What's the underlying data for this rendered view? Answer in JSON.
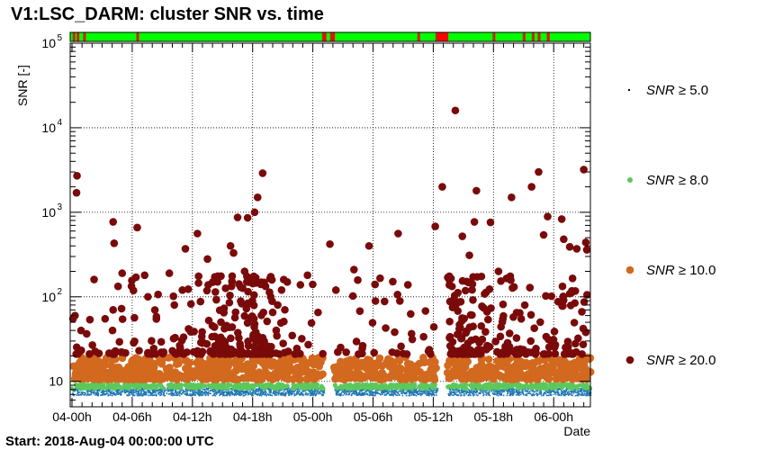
{
  "chart_data": {
    "type": "scatter",
    "title": "V1:LSC_DARM: cluster SNR vs. time",
    "ylabel": "SNR [-]",
    "xlabel": "Date",
    "footer": "Start: 2018-Aug-04 00:00:00 UTC",
    "yscale": "log",
    "ylim": [
      5,
      100000
    ],
    "xlim_hours": [
      0,
      43
    ],
    "grid": true,
    "legend_position": "right",
    "x_ticks": [
      {
        "hours": 0,
        "label": "04-00h"
      },
      {
        "hours": 6,
        "label": "04-06h"
      },
      {
        "hours": 12,
        "label": "04-12h"
      },
      {
        "hours": 18,
        "label": "04-18h"
      },
      {
        "hours": 24,
        "label": "05-00h"
      },
      {
        "hours": 30,
        "label": "05-06h"
      },
      {
        "hours": 36,
        "label": "05-12h"
      },
      {
        "hours": 42,
        "label": "05-18h"
      },
      {
        "hours": 48,
        "label": "06-00h"
      }
    ],
    "y_ticks": [
      {
        "value": 10,
        "mantissa": "10",
        "exponent": ""
      },
      {
        "value": 100,
        "mantissa": "10",
        "exponent": "2"
      },
      {
        "value": 1000,
        "mantissa": "10",
        "exponent": "3"
      },
      {
        "value": 10000,
        "mantissa": "10",
        "exponent": "4"
      },
      {
        "value": 100000,
        "mantissa": "10",
        "exponent": "5"
      }
    ],
    "series": [
      {
        "name": "SNR ≥ 5.0",
        "label_var": "SNR",
        "label_op": "≥ 5.0",
        "color": "#1f77b4",
        "range": [
          5,
          8
        ]
      },
      {
        "name": "SNR ≥ 8.0",
        "label_var": "SNR",
        "label_op": "≥ 8.0",
        "color": "#5cc85c",
        "range": [
          8,
          10
        ]
      },
      {
        "name": "SNR ≥ 10.0",
        "label_var": "SNR",
        "label_op": "≥ 10.0",
        "color": "#d2691e",
        "range": [
          10,
          20
        ]
      },
      {
        "name": "SNR ≥ 20.0",
        "label_var": "SNR",
        "label_op": "≥ 20.0",
        "color": "#7a0a0a",
        "range": [
          20,
          20000
        ]
      }
    ],
    "high_points": [
      {
        "t": 0.5,
        "snr": 2700
      },
      {
        "t": 0.45,
        "snr": 1700
      },
      {
        "t": 0.1,
        "snr": 55
      },
      {
        "t": 0.3,
        "snr": 60
      },
      {
        "t": 0.9,
        "snr": 40
      },
      {
        "t": 3.3,
        "snr": 55
      },
      {
        "t": 4.1,
        "snr": 770
      },
      {
        "t": 4.2,
        "snr": 430
      },
      {
        "t": 4.1,
        "snr": 70
      },
      {
        "t": 5.0,
        "snr": 190
      },
      {
        "t": 6.5,
        "snr": 660
      },
      {
        "t": 9.7,
        "snr": 190
      },
      {
        "t": 10.2,
        "snr": 80
      },
      {
        "t": 11.3,
        "snr": 370
      },
      {
        "t": 11.0,
        "snr": 120
      },
      {
        "t": 12.5,
        "snr": 560
      },
      {
        "t": 13.5,
        "snr": 280
      },
      {
        "t": 14.5,
        "snr": 150
      },
      {
        "t": 15.8,
        "snr": 400
      },
      {
        "t": 16.1,
        "snr": 330
      },
      {
        "t": 16.5,
        "snr": 870
      },
      {
        "t": 17.5,
        "snr": 860
      },
      {
        "t": 17.2,
        "snr": 200
      },
      {
        "t": 18.2,
        "snr": 1000
      },
      {
        "t": 18.5,
        "snr": 1500
      },
      {
        "t": 19.0,
        "snr": 2900
      },
      {
        "t": 19.8,
        "snr": 100
      },
      {
        "t": 20.5,
        "snr": 80
      },
      {
        "t": 21.1,
        "snr": 160
      },
      {
        "t": 25.7,
        "snr": 420
      },
      {
        "t": 26.3,
        "snr": 120
      },
      {
        "t": 28.1,
        "snr": 210
      },
      {
        "t": 29.6,
        "snr": 400
      },
      {
        "t": 30.2,
        "snr": 140
      },
      {
        "t": 32.5,
        "snr": 560
      },
      {
        "t": 36.2,
        "snr": 680
      },
      {
        "t": 36.9,
        "snr": 2000
      },
      {
        "t": 37.6,
        "snr": 175
      },
      {
        "t": 38.2,
        "snr": 16000
      },
      {
        "t": 38.9,
        "snr": 520
      },
      {
        "t": 39.6,
        "snr": 310
      },
      {
        "t": 40.1,
        "snr": 770
      },
      {
        "t": 40.3,
        "snr": 1800
      },
      {
        "t": 41.7,
        "snr": 760
      },
      {
        "t": 42.5,
        "snr": 200
      },
      {
        "t": 43.8,
        "snr": 1500
      },
      {
        "t": 45.8,
        "snr": 2000
      },
      {
        "t": 46.5,
        "snr": 3000
      },
      {
        "t": 47.4,
        "snr": 890
      },
      {
        "t": 47.0,
        "snr": 540
      },
      {
        "t": 48.8,
        "snr": 830
      },
      {
        "t": 49.0,
        "snr": 480
      },
      {
        "t": 49.6,
        "snr": 390
      },
      {
        "t": 50.3,
        "snr": 370
      },
      {
        "t": 51.0,
        "snr": 3200
      },
      {
        "t": 51.2,
        "snr": 440
      },
      {
        "t": 51.3,
        "snr": 360
      }
    ],
    "state_bar": {
      "colors": {
        "ok": "#00ff00",
        "bad": "#ff0000",
        "gap": "#7a4a00"
      },
      "bad_intervals_hours": [
        [
          0.15,
          0.3
        ],
        [
          0.55,
          0.65
        ],
        [
          1.2,
          1.3
        ],
        [
          6.5,
          6.6
        ],
        [
          25.0,
          25.35
        ],
        [
          25.8,
          26.2
        ],
        [
          34.5,
          34.6
        ],
        [
          36.3,
          37.5
        ],
        [
          42.0,
          42.1
        ],
        [
          45.0,
          45.1
        ],
        [
          45.9,
          46.0
        ],
        [
          46.5,
          46.6
        ],
        [
          47.4,
          47.6
        ]
      ]
    }
  }
}
